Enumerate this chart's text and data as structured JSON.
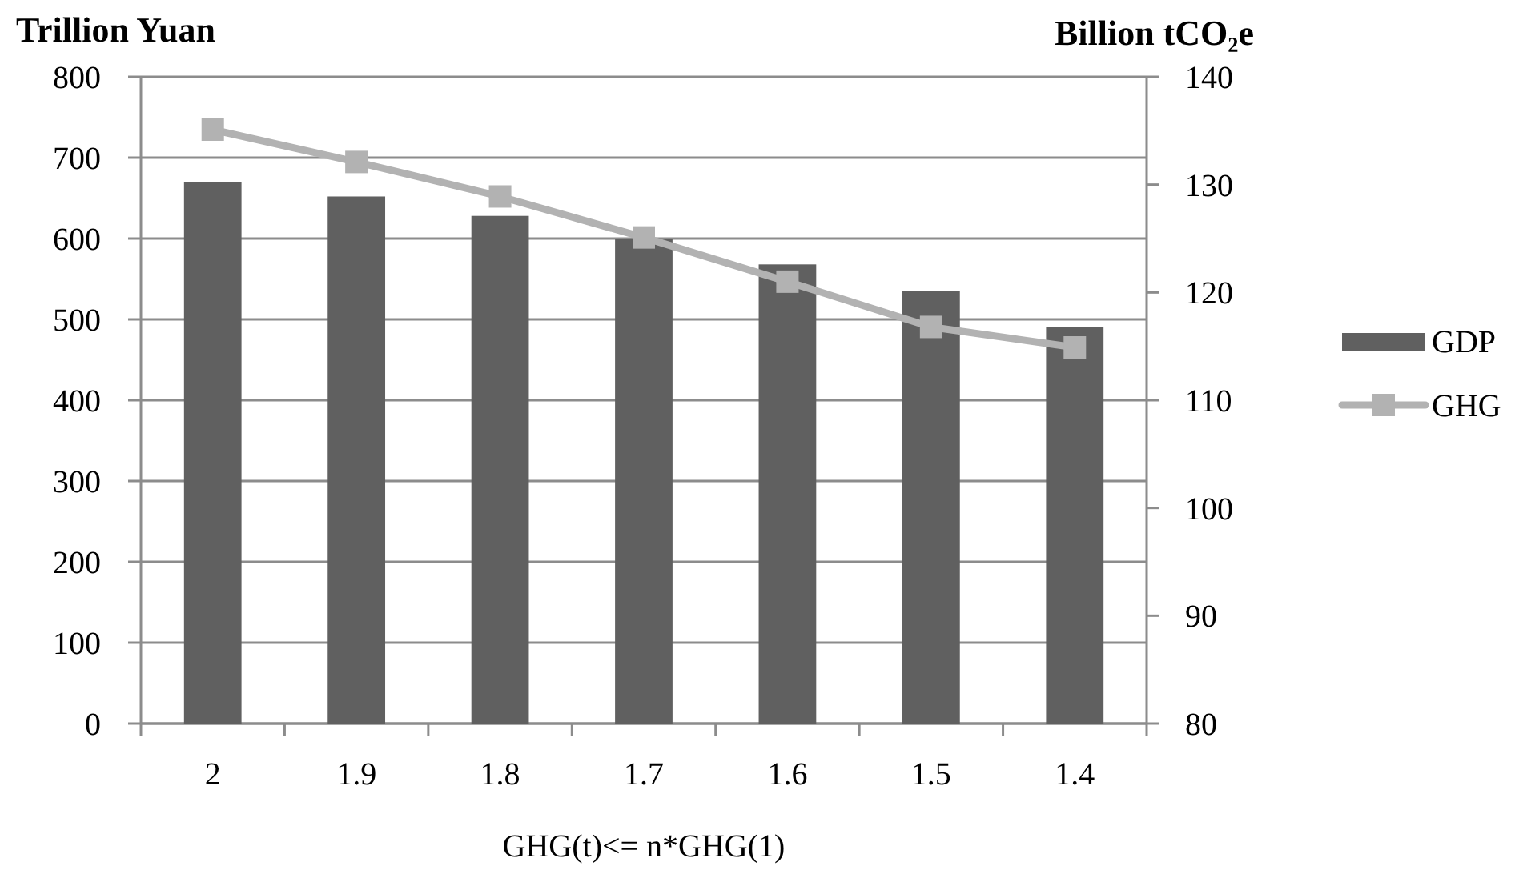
{
  "chart_data": {
    "type": "bar",
    "ylabel": "Trillion Yuan",
    "y2label": "Billion tCO₂e",
    "xlabel": "GHG(t)<= n*GHG(1)",
    "categories": [
      "2",
      "1.9",
      "1.8",
      "1.7",
      "1.6",
      "1.5",
      "1.4"
    ],
    "series": [
      {
        "name": "GDP",
        "color": "#606060",
        "values": [
          670,
          652,
          628,
          600,
          568,
          535,
          491
        ]
      },
      {
        "name": "GHG",
        "type": "line",
        "axis": "y2",
        "color": "#b2b2b2",
        "values": [
          135.1,
          132.1,
          128.9,
          125.1,
          121.0,
          116.8,
          114.9
        ]
      }
    ],
    "ylim": [
      0,
      800
    ],
    "yticks": [
      0,
      100,
      200,
      300,
      400,
      500,
      600,
      700,
      800
    ],
    "y2lim": [
      80,
      140
    ],
    "y2ticks": [
      80,
      90,
      100,
      110,
      120,
      130,
      140
    ],
    "grid": "y",
    "legend": "right",
    "marker": "square"
  }
}
